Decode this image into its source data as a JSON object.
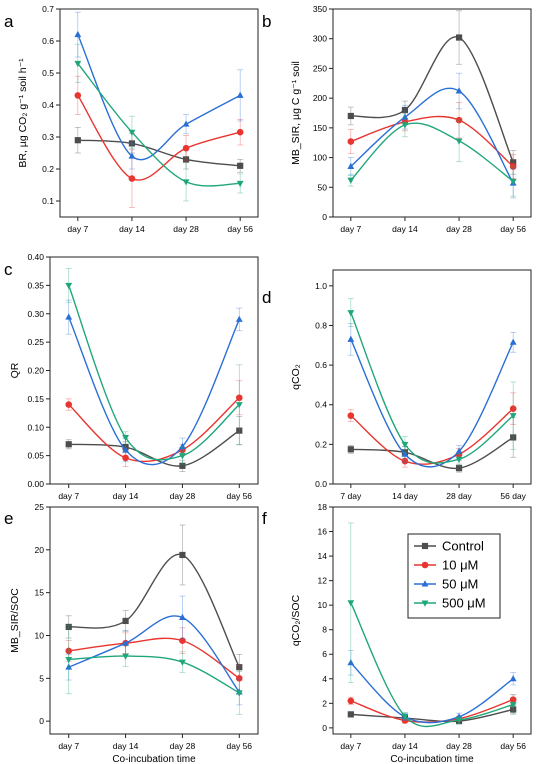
{
  "legend": {
    "entries": [
      {
        "label": "Control",
        "color": "#4d4d4d",
        "marker": "square"
      },
      {
        "label": "10 μM",
        "color": "#e8352f",
        "marker": "circle"
      },
      {
        "label": "50 μM",
        "color": "#2a6fd6",
        "marker": "triangle-up"
      },
      {
        "label": "500 μM",
        "color": "#1fa77a",
        "marker": "triangle-down"
      }
    ]
  },
  "chart_data": [
    {
      "panel": "a",
      "type": "line",
      "categories": [
        "day 7",
        "day 14",
        "day 28",
        "day 56"
      ],
      "ylabel": "BR, µg CO₂ g⁻¹ soil h⁻¹",
      "ylim": [
        0.05,
        0.7
      ],
      "yticks": [
        "0.1",
        "0.2",
        "0.3",
        "0.4",
        "0.5",
        "0.6",
        "0.7"
      ],
      "series": [
        {
          "name": "Control",
          "values": [
            0.29,
            0.28,
            0.23,
            0.21
          ],
          "err": [
            0.04,
            0.03,
            0.03,
            0.02
          ]
        },
        {
          "name": "10 μM",
          "values": [
            0.43,
            0.17,
            0.265,
            0.315
          ],
          "err": [
            0.06,
            0.09,
            0.04,
            0.04
          ]
        },
        {
          "name": "50 μM",
          "values": [
            0.62,
            0.24,
            0.34,
            0.43
          ],
          "err": [
            0.07,
            0.04,
            0.03,
            0.08
          ]
        },
        {
          "name": "500 μM",
          "values": [
            0.53,
            0.315,
            0.16,
            0.155
          ],
          "err": [
            0.06,
            0.05,
            0.06,
            0.03
          ]
        }
      ]
    },
    {
      "panel": "b",
      "type": "line",
      "categories": [
        "day 7",
        "day 14",
        "day 28",
        "day 56"
      ],
      "ylabel": "MB_SIR, µg C g⁻¹ soil",
      "ylim": [
        0,
        350
      ],
      "yticks": [
        "0",
        "50",
        "100",
        "150",
        "200",
        "250",
        "300",
        "350"
      ],
      "series": [
        {
          "name": "Control",
          "values": [
            170,
            180,
            302,
            92
          ],
          "err": [
            15,
            15,
            45,
            20
          ]
        },
        {
          "name": "10 μM",
          "values": [
            127,
            160,
            163,
            85
          ],
          "err": [
            20,
            15,
            30,
            20
          ]
        },
        {
          "name": "50 μM",
          "values": [
            85,
            168,
            212,
            57
          ],
          "err": [
            15,
            20,
            30,
            25
          ]
        },
        {
          "name": "500 μM",
          "values": [
            62,
            155,
            128,
            60
          ],
          "err": [
            10,
            20,
            35,
            25
          ]
        }
      ]
    },
    {
      "panel": "c",
      "type": "line",
      "categories": [
        "day 7",
        "day 14",
        "day 28",
        "day 56"
      ],
      "ylabel": "QR",
      "ylim": [
        0,
        0.4
      ],
      "yticks": [
        "0.00",
        "0.05",
        "0.10",
        "0.15",
        "0.20",
        "0.25",
        "0.30",
        "0.35",
        "0.40"
      ],
      "series": [
        {
          "name": "Control",
          "values": [
            0.07,
            0.065,
            0.032,
            0.094
          ],
          "err": [
            0.008,
            0.01,
            0.01,
            0.025
          ]
        },
        {
          "name": "10 μM",
          "values": [
            0.14,
            0.046,
            0.06,
            0.152
          ],
          "err": [
            0.01,
            0.015,
            0.01,
            0.03
          ]
        },
        {
          "name": "50 μM",
          "values": [
            0.294,
            0.06,
            0.066,
            0.29
          ],
          "err": [
            0.03,
            0.02,
            0.015,
            0.02
          ]
        },
        {
          "name": "500 μM",
          "values": [
            0.35,
            0.082,
            0.05,
            0.14
          ],
          "err": [
            0.03,
            0.01,
            0.015,
            0.07
          ]
        }
      ]
    },
    {
      "panel": "d",
      "type": "line",
      "categories": [
        "7 day",
        "14 day",
        "28 day",
        "56 day"
      ],
      "ylabel": "qCO₂",
      "ylim": [
        0,
        1.08
      ],
      "yticks": [
        "0.0",
        "0.2",
        "0.4",
        "0.6",
        "0.8",
        "1.0"
      ],
      "series": [
        {
          "name": "Control",
          "values": [
            0.175,
            0.16,
            0.08,
            0.235
          ],
          "err": [
            0.02,
            0.03,
            0.02,
            0.1
          ]
        },
        {
          "name": "10 μM",
          "values": [
            0.345,
            0.115,
            0.15,
            0.38
          ],
          "err": [
            0.03,
            0.03,
            0.03,
            0.08
          ]
        },
        {
          "name": "50 μM",
          "values": [
            0.73,
            0.15,
            0.165,
            0.715
          ],
          "err": [
            0.08,
            0.04,
            0.03,
            0.05
          ]
        },
        {
          "name": "500 μM",
          "values": [
            0.865,
            0.2,
            0.125,
            0.345
          ],
          "err": [
            0.07,
            0.04,
            0.03,
            0.17
          ]
        }
      ]
    },
    {
      "panel": "e",
      "type": "line",
      "categories": [
        "day 7",
        "day 14",
        "day 28",
        "day 56"
      ],
      "xlabel": "Co-incubation time",
      "ylabel": "MB_SIR/SOC",
      "ylim": [
        -1.5,
        25
      ],
      "yticks": [
        "0",
        "5",
        "10",
        "15",
        "20",
        "25"
      ],
      "series": [
        {
          "name": "Control",
          "values": [
            11.0,
            11.7,
            19.4,
            6.3
          ],
          "err": [
            1.3,
            1.2,
            3.5,
            1.5
          ]
        },
        {
          "name": "10 μM",
          "values": [
            8.2,
            9.1,
            9.4,
            5.0
          ],
          "err": [
            1.2,
            1.2,
            1.5,
            1.5
          ]
        },
        {
          "name": "50 μM",
          "values": [
            6.3,
            9.1,
            12.1,
            3.4
          ],
          "err": [
            1.5,
            1.5,
            2.5,
            1.5
          ]
        },
        {
          "name": "500 μM",
          "values": [
            7.2,
            7.6,
            6.9,
            3.3
          ],
          "err": [
            4.0,
            1.2,
            1.2,
            2.5
          ]
        }
      ]
    },
    {
      "panel": "f",
      "type": "line",
      "categories": [
        "day 7",
        "day 14",
        "day 28",
        "day 56"
      ],
      "xlabel": "Co-incubation time",
      "ylabel": "qCO₂/SOC",
      "ylim": [
        -0.5,
        18
      ],
      "yticks": [
        "0",
        "2",
        "4",
        "6",
        "8",
        "10",
        "12",
        "14",
        "16",
        "18"
      ],
      "series": [
        {
          "name": "Control",
          "values": [
            1.1,
            0.8,
            0.55,
            1.5
          ],
          "err": [
            0.2,
            0.2,
            0.2,
            0.3
          ]
        },
        {
          "name": "10 μM",
          "values": [
            2.2,
            0.6,
            0.75,
            2.3
          ],
          "err": [
            0.3,
            0.2,
            0.2,
            0.4
          ]
        },
        {
          "name": "50 μM",
          "values": [
            5.3,
            0.9,
            0.9,
            4.0
          ],
          "err": [
            1.0,
            0.3,
            0.3,
            0.5
          ]
        },
        {
          "name": "500 μM",
          "values": [
            10.2,
            0.95,
            0.65,
            1.9
          ],
          "err": [
            6.5,
            0.3,
            0.3,
            0.8
          ]
        }
      ]
    }
  ]
}
